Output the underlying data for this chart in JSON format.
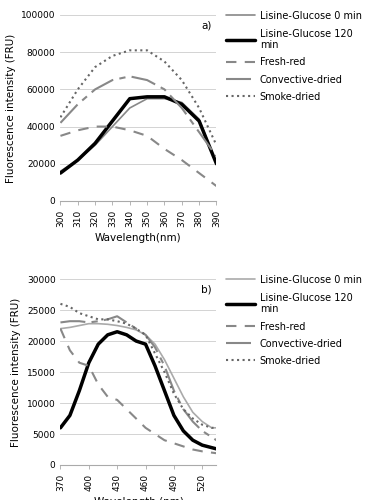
{
  "panel_a": {
    "label": "a)",
    "xlabel": "Wavelength(nm)",
    "ylabel": "Fluorescence intensity (FRU)",
    "xlim": [
      300,
      390
    ],
    "ylim": [
      0,
      100000
    ],
    "xticks": [
      300,
      310,
      320,
      330,
      340,
      350,
      360,
      370,
      380,
      390
    ],
    "yticks": [
      0,
      20000,
      40000,
      60000,
      80000,
      100000
    ],
    "series": {
      "lg0": {
        "label": "Lisine-Glucose 0 min",
        "x": [
          300,
          310,
          320,
          330,
          340,
          350,
          360,
          370,
          380,
          390
        ],
        "y": [
          16000,
          22000,
          30000,
          40000,
          50000,
          55000,
          55000,
          53000,
          44000,
          20000
        ],
        "color": "#888888",
        "lw": 1.2,
        "ls": "-"
      },
      "lg120": {
        "label": "Lisine-Glucose 120\nmin",
        "x": [
          300,
          310,
          320,
          330,
          340,
          350,
          360,
          370,
          380,
          390
        ],
        "y": [
          15000,
          22000,
          31000,
          43000,
          55000,
          56000,
          56000,
          52000,
          43000,
          20000
        ],
        "color": "#000000",
        "lw": 2.5,
        "ls": "-"
      },
      "fresh": {
        "label": "Fresh-red",
        "x": [
          300,
          310,
          320,
          330,
          340,
          350,
          360,
          370,
          380,
          390
        ],
        "y": [
          35000,
          38000,
          40000,
          40000,
          38000,
          35000,
          28000,
          22000,
          15000,
          8000
        ],
        "color": "#888888",
        "lw": 1.5,
        "ls": "--",
        "dashes": [
          5,
          4
        ]
      },
      "conv": {
        "label": "Convective-dried",
        "x": [
          300,
          310,
          320,
          330,
          340,
          350,
          360,
          370,
          380,
          390
        ],
        "y": [
          42000,
          52000,
          60000,
          65000,
          67000,
          65000,
          60000,
          50000,
          37000,
          24000
        ],
        "color": "#888888",
        "lw": 1.5,
        "ls": "--",
        "dashes": [
          12,
          3,
          3,
          3
        ]
      },
      "smoke": {
        "label": "Smoke-dried",
        "x": [
          300,
          310,
          320,
          330,
          340,
          350,
          360,
          370,
          380,
          390
        ],
        "y": [
          45000,
          60000,
          72000,
          78000,
          81000,
          81000,
          75000,
          65000,
          50000,
          30000
        ],
        "color": "#666666",
        "lw": 1.5,
        "ls": ":"
      }
    }
  },
  "panel_b": {
    "label": "b)",
    "xlabel": "Wavelength (nm)",
    "ylabel": "Fluorescence intensity (FRU)",
    "xlim": [
      370,
      535
    ],
    "ylim": [
      0,
      30000
    ],
    "xticks": [
      370,
      400,
      430,
      460,
      490,
      520
    ],
    "yticks": [
      0,
      5000,
      10000,
      15000,
      20000,
      25000,
      30000
    ],
    "series": {
      "lg0": {
        "label": "Lisine-Glucose 0 min",
        "x": [
          370,
          380,
          390,
          400,
          410,
          420,
          430,
          440,
          450,
          460,
          470,
          480,
          490,
          500,
          510,
          520,
          530,
          535
        ],
        "y": [
          22000,
          22200,
          22500,
          22800,
          22800,
          22700,
          22500,
          22200,
          21800,
          21000,
          19500,
          17000,
          14000,
          11000,
          8500,
          7000,
          6000,
          6000
        ],
        "color": "#aaaaaa",
        "lw": 1.2,
        "ls": "-"
      },
      "lg120": {
        "label": "Lisine-Glucose 120\nmin",
        "x": [
          370,
          380,
          390,
          400,
          410,
          420,
          430,
          440,
          450,
          460,
          470,
          480,
          490,
          500,
          510,
          520,
          530,
          535
        ],
        "y": [
          6000,
          8000,
          12000,
          16500,
          19500,
          21000,
          21500,
          21000,
          20000,
          19500,
          16000,
          12000,
          8000,
          5500,
          4000,
          3200,
          2800,
          2600
        ],
        "color": "#000000",
        "lw": 2.5,
        "ls": "-"
      },
      "fresh": {
        "label": "Fresh-red",
        "x": [
          370,
          380,
          390,
          400,
          410,
          420,
          430,
          440,
          450,
          460,
          470,
          480,
          490,
          500,
          510,
          520,
          530,
          535
        ],
        "y": [
          22000,
          18500,
          16500,
          16000,
          13000,
          11000,
          10500,
          9000,
          7500,
          6000,
          5000,
          4000,
          3500,
          3000,
          2500,
          2200,
          2000,
          1900
        ],
        "color": "#888888",
        "lw": 1.5,
        "ls": "--",
        "dashes": [
          5,
          4
        ]
      },
      "conv": {
        "label": "Convective-dried",
        "x": [
          370,
          380,
          390,
          400,
          410,
          420,
          430,
          440,
          450,
          460,
          470,
          480,
          490,
          500,
          510,
          520,
          530,
          535
        ],
        "y": [
          23000,
          23200,
          23200,
          23000,
          23200,
          23500,
          24000,
          23000,
          22000,
          21000,
          19000,
          16000,
          12000,
          9000,
          7000,
          5500,
          4500,
          4000
        ],
        "color": "#888888",
        "lw": 1.5,
        "ls": "--",
        "dashes": [
          12,
          3,
          3,
          3
        ]
      },
      "smoke": {
        "label": "Smoke-dried",
        "x": [
          370,
          380,
          390,
          400,
          410,
          420,
          430,
          440,
          450,
          460,
          470,
          480,
          490,
          500,
          510,
          520,
          530,
          535
        ],
        "y": [
          26000,
          25500,
          24500,
          24000,
          23500,
          23500,
          23200,
          22800,
          22000,
          21000,
          18000,
          15000,
          11500,
          9000,
          7500,
          6500,
          6000,
          6000
        ],
        "color": "#666666",
        "lw": 1.5,
        "ls": ":"
      }
    }
  },
  "legend_fontsize": 7,
  "tick_fontsize": 6.5,
  "label_fontsize": 7.5,
  "background_color": "#ffffff"
}
